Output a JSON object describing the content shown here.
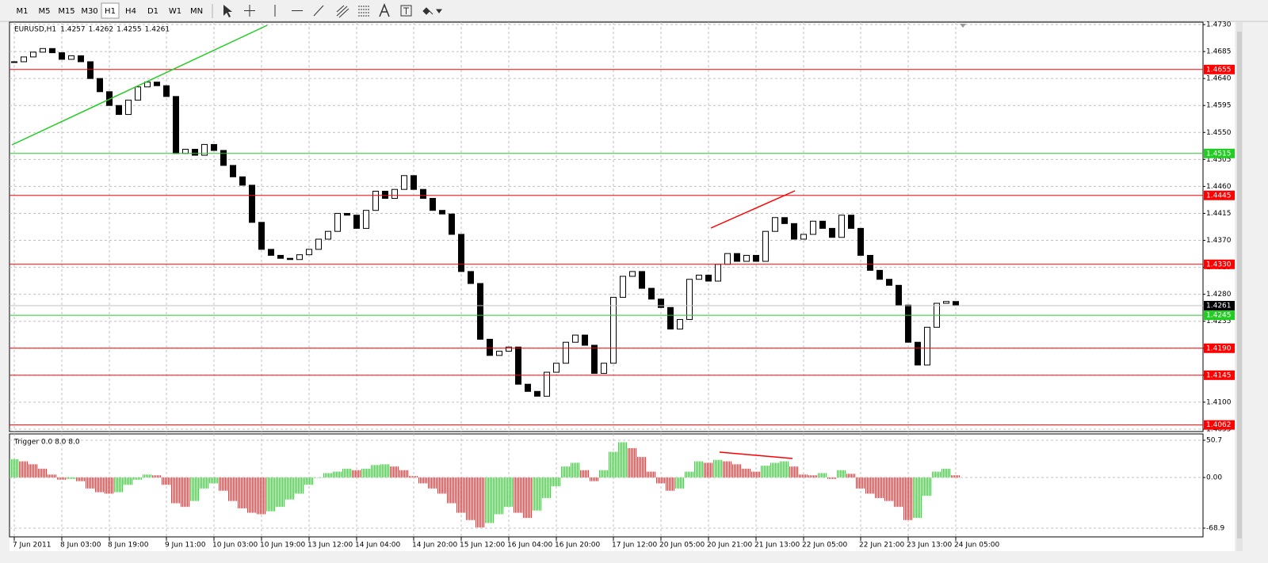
{
  "toolbar": {
    "timeframes": [
      "M1",
      "M5",
      "M15",
      "M30",
      "H1",
      "H4",
      "D1",
      "W1",
      "MN"
    ],
    "active": "H1"
  },
  "chart_data": [
    {
      "type": "candlestick",
      "title": "EURUSD,H1",
      "ohlc": [
        1.4257,
        1.4262,
        1.4255,
        1.4261
      ],
      "categories": [
        "7 Jun 2011",
        null,
        null,
        null,
        null,
        "8 Jun 03:00",
        null,
        null,
        null,
        null,
        "8 Jun 19:00",
        null,
        null,
        null,
        null,
        null,
        "9 Jun 11:00",
        null,
        null,
        null,
        null,
        "10 Jun 03:00",
        null,
        null,
        null,
        null,
        "10 Jun 19:00",
        null,
        null,
        null,
        null,
        "13 Jun 12:00",
        null,
        null,
        null,
        null,
        "14 Jun 04:00",
        null,
        null,
        null,
        null,
        null,
        "14 Jun 20:00",
        null,
        null,
        null,
        null,
        "15 Jun 12:00",
        null,
        null,
        null,
        null,
        "16 Jun 04:00",
        null,
        null,
        null,
        null,
        "16 Jun 20:00",
        null,
        null,
        null,
        null,
        null,
        "17 Jun 12:00",
        null,
        null,
        null,
        null,
        "20 Jun 05:00",
        null,
        null,
        null,
        null,
        "20 Jun 21:00",
        null,
        null,
        null,
        null,
        "21 Jun 13:00",
        null,
        null,
        null,
        null,
        "22 Jun 05:00",
        null,
        null,
        null,
        null,
        null,
        "22 Jun 21:00",
        null,
        null,
        null,
        null,
        "23 Jun 13:00",
        null,
        null,
        null,
        null,
        "24 Jun 05:00"
      ],
      "values": [
        1.4668,
        1.4676,
        1.4684,
        1.469,
        1.4683,
        1.4672,
        1.4678,
        1.4668,
        1.464,
        1.4618,
        1.4595,
        1.458,
        1.4604,
        1.4626,
        1.4634,
        1.4628,
        1.461,
        1.4515,
        1.4522,
        1.4512,
        1.453,
        1.452,
        1.4495,
        1.4476,
        1.4462,
        1.44,
        1.4355,
        1.4345,
        1.434,
        1.4338,
        1.4346,
        1.4355,
        1.4372,
        1.4385,
        1.4415,
        1.4412,
        1.439,
        1.442,
        1.4452,
        1.444,
        1.4455,
        1.4478,
        1.4455,
        1.444,
        1.442,
        1.4414,
        1.438,
        1.4318,
        1.4298,
        1.4205,
        1.4178,
        1.4185,
        1.4192,
        1.413,
        1.4118,
        1.411,
        1.415,
        1.4165,
        1.42,
        1.4212,
        1.4195,
        1.4148,
        1.4165,
        1.4275,
        1.431,
        1.4318,
        1.429,
        1.4272,
        1.4258,
        1.4222,
        1.4238,
        1.4305,
        1.4312,
        1.4302,
        1.433,
        1.4348,
        1.4335,
        1.4345,
        1.4335,
        1.4385,
        1.4408,
        1.4398,
        1.4372,
        1.438,
        1.4402,
        1.439,
        1.4375,
        1.4412,
        1.439,
        1.4345,
        1.432,
        1.4305,
        1.4295,
        1.4262,
        1.42,
        1.4162,
        1.4225,
        1.4265,
        1.4268,
        1.4261
      ],
      "bull_color": "#ffffff",
      "bear_color": "#000000",
      "ylim": [
        1.4051,
        1.4734
      ],
      "yticks": [
        1.4055,
        {
          "value": 1.41,
          "label": "1.4100"
        },
        1.4145,
        {
          "value": 1.419,
          "label": "1.4190"
        },
        1.4235,
        {
          "value": 1.428,
          "label": "1.4280"
        },
        1.4325,
        {
          "value": 1.437,
          "label": "1.4370"
        },
        1.4415,
        {
          "value": 1.446,
          "label": "1.4460"
        },
        1.4505,
        {
          "value": 1.455,
          "label": "1.4550"
        },
        1.4595,
        {
          "value": 1.464,
          "label": "1.4640"
        },
        1.4685,
        {
          "value": 1.473,
          "label": "1.4730"
        }
      ],
      "grid": true,
      "levels": [
        {
          "value": 1.4655,
          "color": "#ff0000"
        },
        {
          "value": 1.4515,
          "color": "#22cc22"
        },
        {
          "value": 1.4445,
          "color": "#ff0000"
        },
        {
          "value": 1.433,
          "label": "1.4330",
          "color": "#ff0000"
        },
        {
          "value": 1.4245,
          "color": "#22cc22"
        },
        {
          "value": 1.419,
          "label": "1.4190",
          "color": "#ff0000"
        },
        {
          "value": 1.4145,
          "color": "#ff0000"
        },
        {
          "value": 1.4062,
          "color": "#ff0000"
        }
      ],
      "current_price": 1.4261
    },
    {
      "type": "histogram",
      "title": "Trigger 0.0 8.0 8.0",
      "values": [
        25,
        22,
        18,
        12,
        4,
        -3,
        -2,
        -5,
        -15,
        -20,
        -22,
        -20,
        -10,
        -3,
        4,
        3,
        -10,
        -35,
        -40,
        -32,
        -15,
        -8,
        -18,
        -32,
        -42,
        -48,
        -50,
        -46,
        -40,
        -30,
        -22,
        -10,
        0,
        6,
        8,
        12,
        10,
        12,
        17,
        18,
        15,
        10,
        2,
        -8,
        -15,
        -22,
        -35,
        -48,
        -58,
        -68,
        -62,
        -50,
        -40,
        -48,
        -55,
        -45,
        -28,
        -12,
        15,
        20,
        10,
        -5,
        10,
        35,
        48,
        40,
        28,
        8,
        -8,
        -18,
        -15,
        8,
        22,
        20,
        24,
        22,
        18,
        12,
        8,
        16,
        20,
        22,
        15,
        4,
        3,
        6,
        -2,
        10,
        5,
        -15,
        -22,
        -28,
        -32,
        -40,
        -58,
        -55,
        -25,
        8,
        12,
        3
      ],
      "up_color": "#33dd33",
      "down_color": "#ff3333",
      "ylim": [
        -80.8,
        59.3
      ],
      "yticks": [
        50.7,
        {
          "value": 0,
          "label": "0.00"
        },
        -68.9
      ],
      "grid": true
    }
  ]
}
